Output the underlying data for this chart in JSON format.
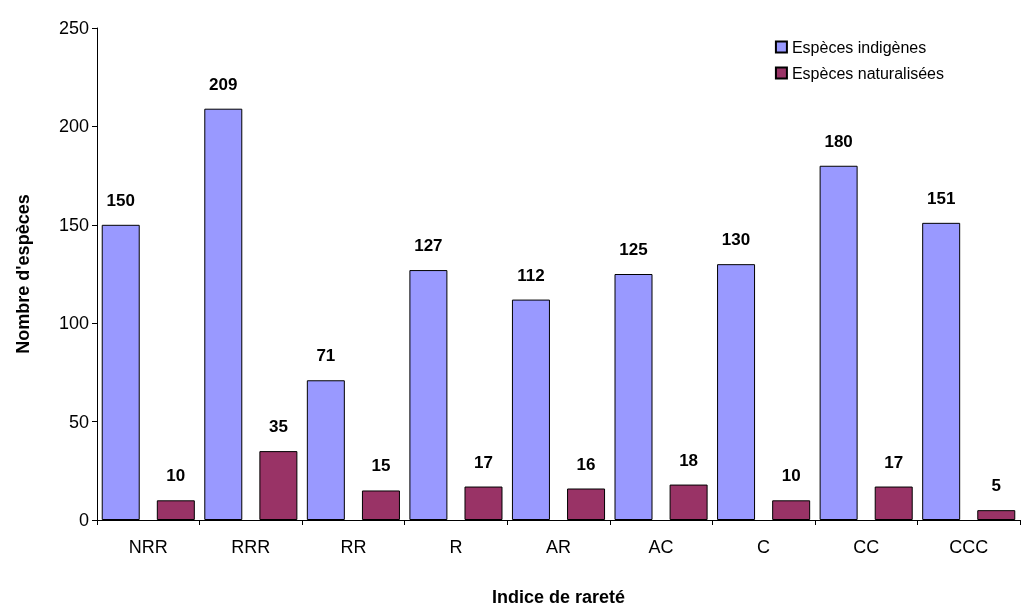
{
  "chart_data": {
    "type": "bar",
    "xlabel": "Indice de rareté",
    "ylabel": "Nombre d'espèces",
    "categories": [
      "NRR",
      "RRR",
      "RR",
      "R",
      "AR",
      "AC",
      "C",
      "CC",
      "CCC"
    ],
    "series": [
      {
        "name": "Espèces indigènes",
        "color": "#9999ff",
        "values": [
          150,
          209,
          71,
          127,
          112,
          125,
          130,
          180,
          151
        ]
      },
      {
        "name": "Espèces naturalisées",
        "color": "#993366",
        "values": [
          10,
          35,
          15,
          17,
          16,
          18,
          10,
          17,
          5
        ]
      }
    ],
    "ylim": [
      0,
      250
    ],
    "yticks": [
      0,
      50,
      100,
      150,
      200,
      250
    ],
    "grid": false,
    "legend": "top right",
    "data_labels": true
  }
}
